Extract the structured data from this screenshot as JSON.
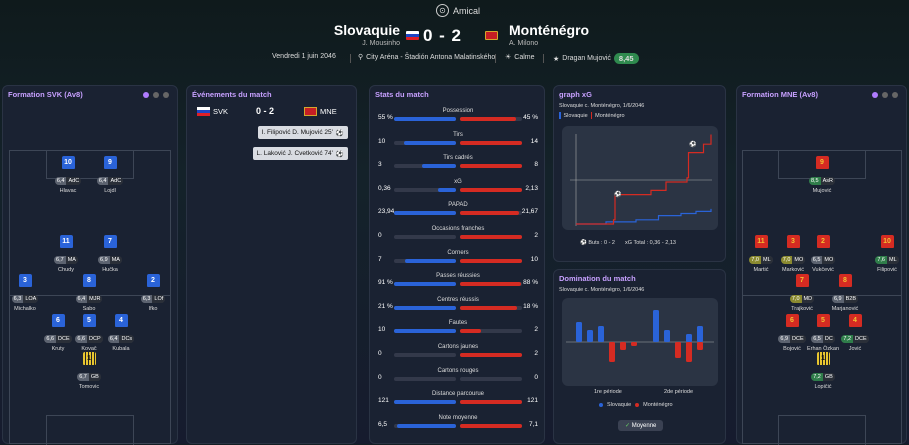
{
  "header": {
    "match_type": "Amical",
    "home": {
      "name": "Slovaquie",
      "coach": "J. Mousinho"
    },
    "away": {
      "name": "Monténégro",
      "coach": "A. Milono"
    },
    "score": "0 - 2",
    "date": "Vendredi 1 juin 2046",
    "stadium": "City Aréna - Štadión Antona Malatinského",
    "weather": "Calme",
    "referee": "Dragan Mujović",
    "referee_rating": "8,45"
  },
  "panels": {
    "svk_formation": "Formation SVK (Av8)",
    "events": "Événements du match",
    "stats": "Stats du match",
    "xg": "graph xG",
    "domination": "Domination du match",
    "mne_formation": "Formation MNE (Av8)"
  },
  "events": {
    "home_abbr": "SVK",
    "away_abbr": "MNE",
    "score": "0 - 2",
    "goals": [
      {
        "text": "I. Filipović  D. Mujović 25'"
      },
      {
        "text": "L. Laković  J. Cvetković 74'"
      }
    ]
  },
  "stats": [
    {
      "label": "Possession",
      "home": "55 %",
      "away": "45 %",
      "h": 55,
      "a": 45
    },
    {
      "label": "Tirs",
      "home": "10",
      "away": "14",
      "h": 10,
      "a": 14
    },
    {
      "label": "Tirs cadrés",
      "home": "3",
      "away": "8",
      "h": 3,
      "a": 8
    },
    {
      "label": "xG",
      "home": "0,36",
      "away": "2,13",
      "h": 0.36,
      "a": 2.13
    },
    {
      "label": "PAPAD",
      "home": "23,94",
      "away": "21,67",
      "h": 23.94,
      "a": 21.67
    },
    {
      "label": "Occasions franches",
      "home": "0",
      "away": "2",
      "h": 0,
      "a": 2
    },
    {
      "label": "Corners",
      "home": "7",
      "away": "10",
      "h": 7,
      "a": 10
    },
    {
      "label": "Passes réussies",
      "home": "91 %",
      "away": "88 %",
      "h": 91,
      "a": 88
    },
    {
      "label": "Centres réussis",
      "home": "21 %",
      "away": "18 %",
      "h": 21,
      "a": 18
    },
    {
      "label": "Fautes",
      "home": "10",
      "away": "2",
      "h": 10,
      "a": 2
    },
    {
      "label": "Cartons jaunes",
      "home": "0",
      "away": "2",
      "h": 0,
      "a": 2
    },
    {
      "label": "Cartons rouges",
      "home": "0",
      "away": "0",
      "h": 0,
      "a": 0
    },
    {
      "label": "Distance parcourue",
      "home": "121",
      "away": "121",
      "h": 121,
      "a": 121
    },
    {
      "label": "Note moyenne",
      "home": "6,5",
      "away": "7,1",
      "h": 6.5,
      "a": 7.1
    }
  ],
  "xg_panel": {
    "subtitle": "Slovaquie c. Monténégro, 1/6/2046",
    "legend_home": "Slovaquie",
    "legend_away": "Monténégro",
    "footer_goals": "Buts : 0 - 2",
    "footer_xg": "xG Total : 0,36 - 2,13"
  },
  "chart_data": [
    {
      "type": "line",
      "title": "graph xG",
      "series": [
        {
          "name": "Slovaquie",
          "color": "#2a63d8",
          "x": [
            0,
            20,
            40,
            55,
            70,
            80,
            90
          ],
          "y": [
            0,
            0.05,
            0.1,
            0.2,
            0.25,
            0.3,
            0.36
          ]
        },
        {
          "name": "Monténégro",
          "color": "#d52b22",
          "x": [
            0,
            25,
            26,
            50,
            60,
            74,
            75,
            85,
            90
          ],
          "y": [
            0,
            0.1,
            0.7,
            0.8,
            1.0,
            1.1,
            1.7,
            1.9,
            2.13
          ]
        }
      ]
    },
    {
      "type": "bar",
      "title": "Domination du match",
      "x_labels": [
        "1re période",
        "2de période"
      ],
      "series": [
        {
          "name": "Slovaquie",
          "color": "#2a63d8",
          "values": [
            5,
            3,
            4,
            0,
            0,
            0,
            0,
            8,
            3,
            0,
            2,
            4
          ]
        },
        {
          "name": "Monténégro",
          "color": "#d52b22",
          "values": [
            0,
            0,
            0,
            5,
            2,
            1,
            0,
            0,
            0,
            4,
            5,
            2
          ]
        }
      ]
    }
  ],
  "domination_panel": {
    "subtitle": "Slovaquie c. Monténégro, 1/6/2046",
    "label_1": "1re période",
    "label_2": "2de période",
    "legend_home": "Slovaquie",
    "legend_away": "Monténégro",
    "button": "Moyenne"
  },
  "svk_players": [
    {
      "num": "10",
      "rating": "6,4",
      "pos": "AdC",
      "name": "Hlavac"
    },
    {
      "num": "9",
      "rating": "6,4",
      "pos": "AdC",
      "name": "Lojdl"
    },
    {
      "num": "11",
      "rating": "6,7",
      "pos": "MA",
      "name": "Chudy"
    },
    {
      "num": "7",
      "rating": "6,9",
      "pos": "MA",
      "name": "Hučka"
    },
    {
      "num": "3",
      "rating": "6,3",
      "pos": "LOA",
      "name": "Michalko"
    },
    {
      "num": "8",
      "rating": "6,4",
      "pos": "MJR",
      "name": "Sabo"
    },
    {
      "num": "2",
      "rating": "6,3",
      "pos": "LOf",
      "name": "Ifko"
    },
    {
      "num": "6",
      "rating": "6,6",
      "pos": "DCE",
      "name": "Kruty"
    },
    {
      "num": "5",
      "rating": "6,6",
      "pos": "DCP",
      "name": "Kovač"
    },
    {
      "num": "4",
      "rating": "6,4",
      "pos": "DCs",
      "name": "Kubala"
    },
    {
      "num": "1",
      "rating": "6,7",
      "pos": "GB",
      "name": "Tomovic"
    }
  ],
  "mne_players": [
    {
      "num": "9",
      "rating": "8,5",
      "pos": "AsR",
      "name": "Mujović"
    },
    {
      "num": "11",
      "rating": "7,0",
      "pos": "ML",
      "name": "Martić"
    },
    {
      "num": "3",
      "rating": "7,0",
      "pos": "MO",
      "name": "Marković"
    },
    {
      "num": "2",
      "rating": "6,5",
      "pos": "MO",
      "name": "Vukčević"
    },
    {
      "num": "10",
      "rating": "7,6",
      "pos": "ML",
      "name": "Filipović"
    },
    {
      "num": "7",
      "rating": "7,0",
      "pos": "MD",
      "name": "Trajković"
    },
    {
      "num": "8",
      "rating": "6,9",
      "pos": "B2B",
      "name": "Marjanović"
    },
    {
      "num": "6",
      "rating": "6,9",
      "pos": "DCE",
      "name": "Bojović"
    },
    {
      "num": "5",
      "rating": "6,5",
      "pos": "DC",
      "name": "Erhan Özkan"
    },
    {
      "num": "4",
      "rating": "7,2",
      "pos": "DCE",
      "name": "Jović"
    },
    {
      "num": "1",
      "rating": "7,2",
      "pos": "GB",
      "name": "Lopičić"
    }
  ]
}
